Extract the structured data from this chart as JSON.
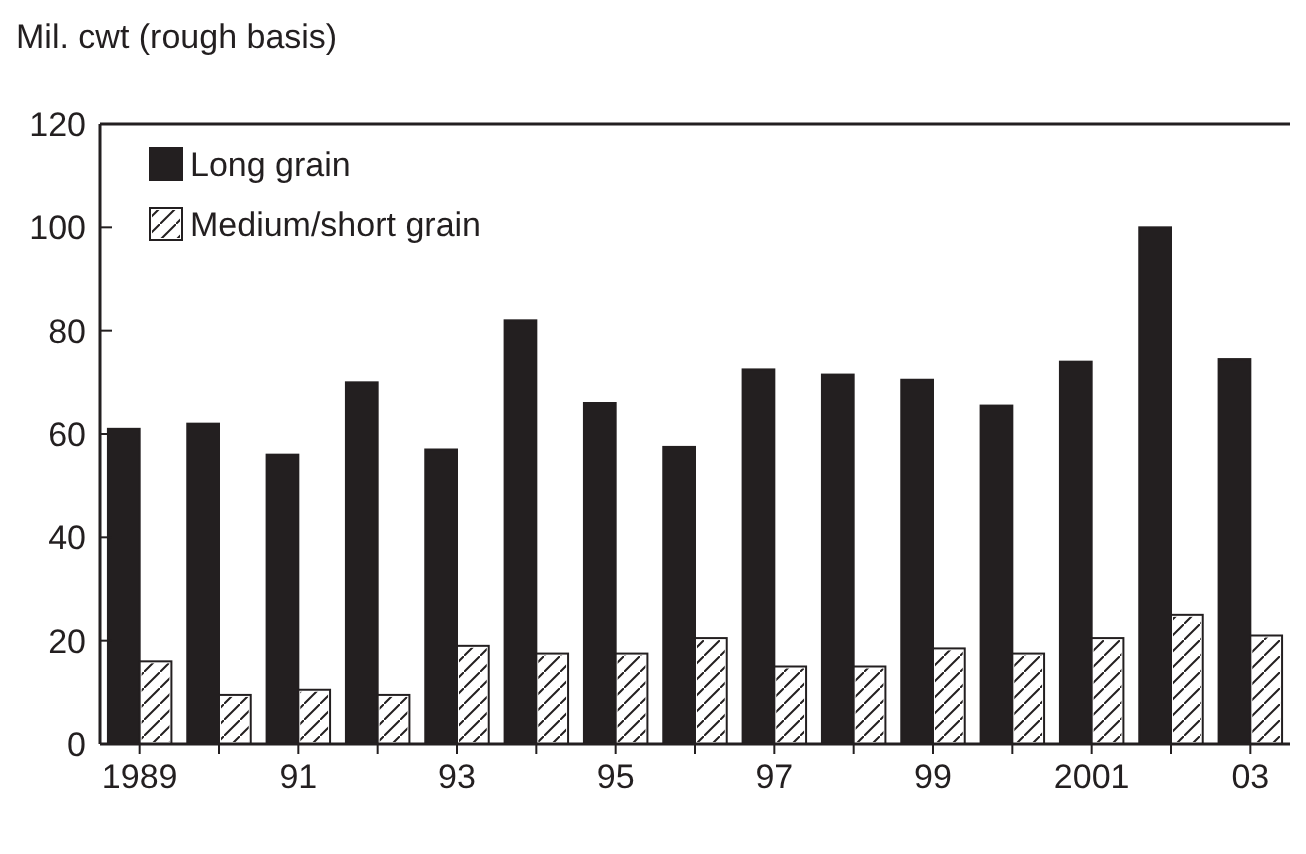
{
  "chart_data": {
    "type": "bar",
    "ylabel": "Mil. cwt (rough basis)",
    "categories": [
      "1989",
      null,
      "91",
      null,
      "93",
      null,
      "95",
      null,
      "97",
      null,
      "99",
      null,
      "2001",
      null,
      "03"
    ],
    "series": [
      {
        "name": "Long grain",
        "color": "#231f20",
        "values": [
          61,
          62,
          56,
          70,
          57,
          82,
          66,
          57.5,
          72.5,
          71.5,
          70.5,
          65.5,
          74,
          100,
          74.5
        ]
      },
      {
        "name": "Medium/short grain",
        "color": "#ffffff",
        "values": [
          16,
          9.5,
          10.5,
          9.5,
          19,
          17.5,
          17.5,
          20.5,
          15,
          15,
          18.5,
          17.5,
          20.5,
          25,
          21
        ]
      }
    ],
    "ylim": [
      0,
      120
    ],
    "yticks": [
      0,
      20,
      40,
      60,
      80,
      100,
      120
    ],
    "grid": false,
    "legend": "top left"
  }
}
